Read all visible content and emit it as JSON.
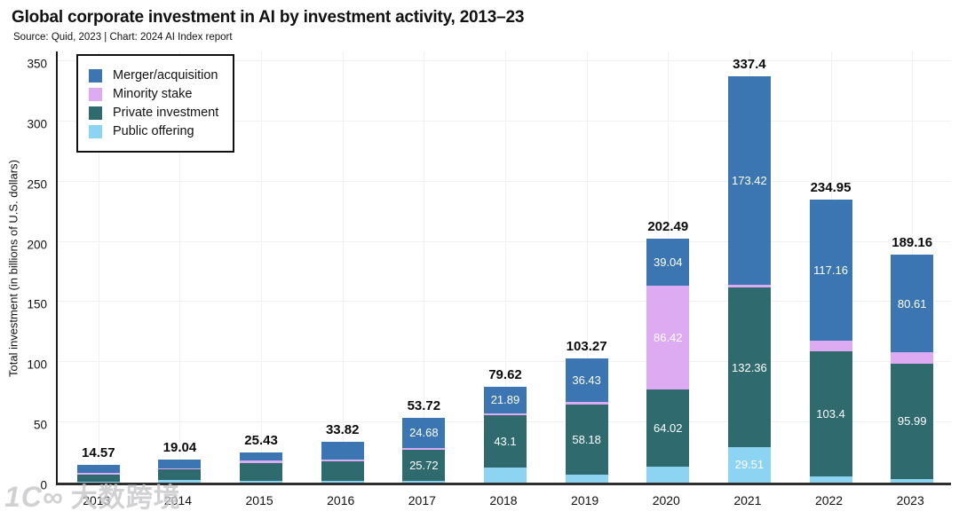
{
  "title": "Global corporate investment in AI by investment activity, 2013–23",
  "subtitle": "Source: Quid, 2023 | Chart: 2024 AI Index report",
  "watermark": {
    "mark": "1C∞",
    "text": "大数跨境"
  },
  "chart_data": {
    "type": "bar",
    "stacked": true,
    "title": "Global corporate investment in AI by investment activity, 2013–23",
    "xlabel": "",
    "ylabel": "Total investment (in billions of U.S. dollars)",
    "ylim": [
      0,
      350
    ],
    "yticks": [
      0,
      50,
      100,
      150,
      200,
      250,
      300,
      350
    ],
    "grid": true,
    "legend_position": "top-left",
    "categories": [
      "2013",
      "2014",
      "2015",
      "2016",
      "2017",
      "2018",
      "2019",
      "2020",
      "2021",
      "2022",
      "2023"
    ],
    "totals": [
      "14.57",
      "19.04",
      "25.43",
      "33.82",
      "53.72",
      "79.62",
      "103.27",
      "202.49",
      "337.4",
      "234.95",
      "189.16"
    ],
    "legend_order": [
      "Merger/acquisition",
      "Minority stake",
      "Private investment",
      "Public offering"
    ],
    "series": [
      {
        "name": "Public offering",
        "color": "#8dd4f2",
        "values": [
          0.67,
          2.09,
          1.43,
          1.52,
          1.32,
          12.9,
          6.5,
          13.01,
          29.51,
          5.43,
          2.95
        ],
        "labels": [
          null,
          null,
          null,
          null,
          null,
          null,
          null,
          null,
          "29.51",
          null,
          null
        ]
      },
      {
        "name": "Private investment",
        "color": "#2e6a6e",
        "values": [
          6.2,
          9.0,
          15.0,
          16.0,
          25.72,
          43.1,
          58.18,
          64.02,
          132.36,
          103.4,
          95.99
        ],
        "labels": [
          null,
          null,
          null,
          null,
          "25.72",
          "43.1",
          "58.18",
          "64.02",
          "132.36",
          "103.4",
          "95.99"
        ]
      },
      {
        "name": "Minority stake",
        "color": "#dcabf1",
        "values": [
          1.5,
          0.95,
          2.0,
          1.5,
          2.0,
          1.73,
          2.16,
          86.42,
          2.11,
          8.96,
          9.61
        ],
        "labels": [
          null,
          null,
          null,
          null,
          null,
          null,
          null,
          "86.42",
          null,
          null,
          null
        ]
      },
      {
        "name": "Merger/acquisition",
        "color": "#3b76b3",
        "values": [
          6.2,
          7.0,
          7.0,
          14.8,
          24.68,
          21.89,
          36.43,
          39.04,
          173.42,
          117.16,
          80.61
        ],
        "labels": [
          null,
          null,
          null,
          null,
          "24.68",
          "21.89",
          "36.43",
          "39.04",
          "173.42",
          "117.16",
          "80.61"
        ]
      }
    ]
  }
}
